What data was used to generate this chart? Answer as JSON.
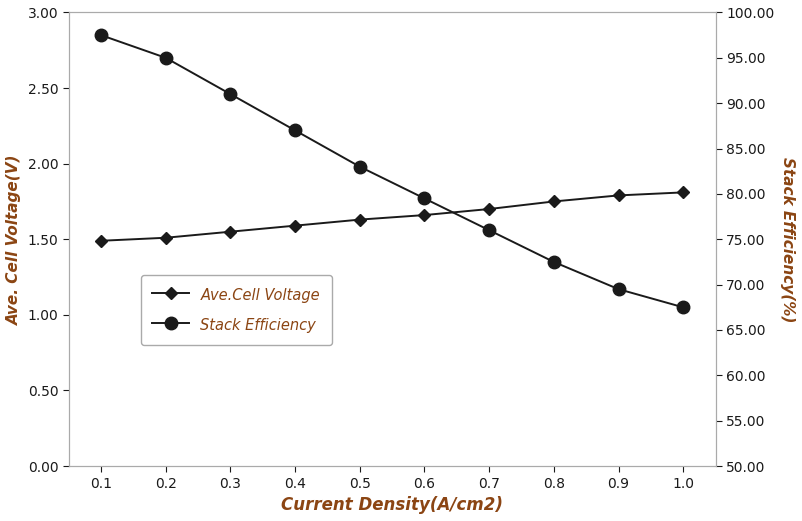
{
  "x": [
    0.1,
    0.2,
    0.3,
    0.4,
    0.5,
    0.6,
    0.7,
    0.8,
    0.9,
    1.0
  ],
  "cell_voltage": [
    1.49,
    1.51,
    1.55,
    1.59,
    1.63,
    1.66,
    1.7,
    1.75,
    1.79,
    1.81
  ],
  "stack_efficiency_pct": [
    97.5,
    95.0,
    91.0,
    87.0,
    83.0,
    79.5,
    76.0,
    72.5,
    69.5,
    67.5
  ],
  "ylabel_left": "Ave. Cell Voltage(V)",
  "ylabel_right": "Stack Efficiency(%)",
  "xlabel": "Current Density(A/cm2)",
  "legend_voltage": "Ave.Cell Voltage",
  "legend_efficiency": "Stack Efficiency",
  "ylim_left": [
    0.0,
    3.0
  ],
  "ylim_right": [
    50.0,
    100.0
  ],
  "xlim": [
    0.05,
    1.05
  ],
  "line_color": "#1a1a1a",
  "label_color": "#8B4513",
  "tick_color": "#1a1a1a",
  "background": "#ffffff",
  "yticks_left": [
    0.0,
    0.5,
    1.0,
    1.5,
    2.0,
    2.5,
    3.0
  ],
  "yticks_left_labels": [
    "0.00",
    "0.50",
    "1.00",
    "1.50",
    "2.00",
    "2.50",
    "3.00"
  ],
  "yticks_right": [
    50,
    55,
    60,
    65,
    70,
    75,
    80,
    85,
    90,
    95,
    100
  ],
  "xticks": [
    0.1,
    0.2,
    0.3,
    0.4,
    0.5,
    0.6,
    0.7,
    0.8,
    0.9,
    1.0
  ],
  "xtick_labels": [
    "0.1",
    "0.2",
    "0.3",
    "0.4",
    "0.5",
    "0.6",
    "0.7",
    "0.8",
    "0.9",
    "1.0"
  ]
}
